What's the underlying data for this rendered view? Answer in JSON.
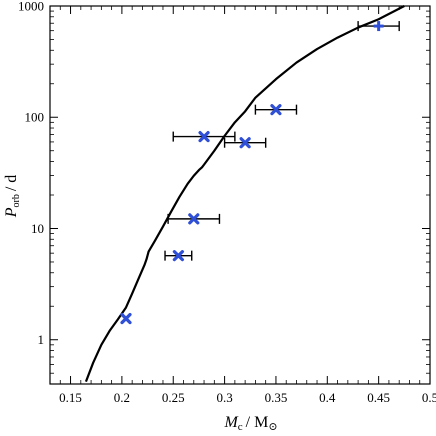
{
  "chart_data": {
    "type": "scatter",
    "xlabel": {
      "main": "M",
      "sub": "c",
      "unit": "/ M",
      "unit_sub": "⊙"
    },
    "ylabel": {
      "main": "P",
      "sub": "orb",
      "unit": "/ d"
    },
    "xlim": [
      0.13,
      0.5
    ],
    "ylim": [
      0.4,
      1000
    ],
    "yscale": "log",
    "xticks": [
      0.15,
      0.2,
      0.25,
      0.3,
      0.35,
      0.4,
      0.45,
      0.5
    ],
    "xtick_labels": [
      "0.15",
      "0.2",
      "0.25",
      "0.3",
      "0.35",
      "0.4",
      "0.45",
      "0.5"
    ],
    "yticks": [
      1,
      10,
      100,
      1000
    ],
    "ytick_labels": [
      "1",
      "10",
      "100",
      "1000"
    ],
    "grid": false,
    "legend": "none",
    "marker_color": "#2f4fd6",
    "points": [
      {
        "x": 0.204,
        "y": 1.55,
        "xerr_low": 0,
        "xerr_high": 0,
        "marker": "x"
      },
      {
        "x": 0.255,
        "y": 5.7,
        "xerr_low": 0.013,
        "xerr_high": 0.013,
        "marker": "x"
      },
      {
        "x": 0.27,
        "y": 12.2,
        "xerr_low": 0.025,
        "xerr_high": 0.025,
        "marker": "x"
      },
      {
        "x": 0.28,
        "y": 67,
        "xerr_low": 0.03,
        "xerr_high": 0.03,
        "marker": "x"
      },
      {
        "x": 0.32,
        "y": 59,
        "xerr_low": 0.02,
        "xerr_high": 0.02,
        "marker": "x"
      },
      {
        "x": 0.35,
        "y": 117,
        "xerr_low": 0.02,
        "xerr_high": 0.02,
        "marker": "x"
      },
      {
        "x": 0.45,
        "y": 660,
        "xerr_low": 0.02,
        "xerr_high": 0.02,
        "marker": "+"
      }
    ],
    "curve": {
      "x": [
        0.165,
        0.172,
        0.18,
        0.188,
        0.196,
        0.204,
        0.21,
        0.216,
        0.222,
        0.224,
        0.226,
        0.232,
        0.24,
        0.248,
        0.256,
        0.264,
        0.27,
        0.275,
        0.278,
        0.28,
        0.29,
        0.3,
        0.31,
        0.32,
        0.33,
        0.35,
        0.37,
        0.39,
        0.41,
        0.43,
        0.45,
        0.475
      ],
      "y": [
        0.42,
        0.62,
        0.9,
        1.2,
        1.52,
        1.95,
        2.6,
        3.5,
        4.7,
        5.3,
        6.2,
        7.7,
        10.4,
        14.2,
        19.2,
        25.2,
        29.8,
        33.5,
        35.5,
        37.5,
        50,
        68,
        90,
        113,
        150,
        220,
        310,
        410,
        520,
        640,
        760,
        1000
      ]
    }
  }
}
